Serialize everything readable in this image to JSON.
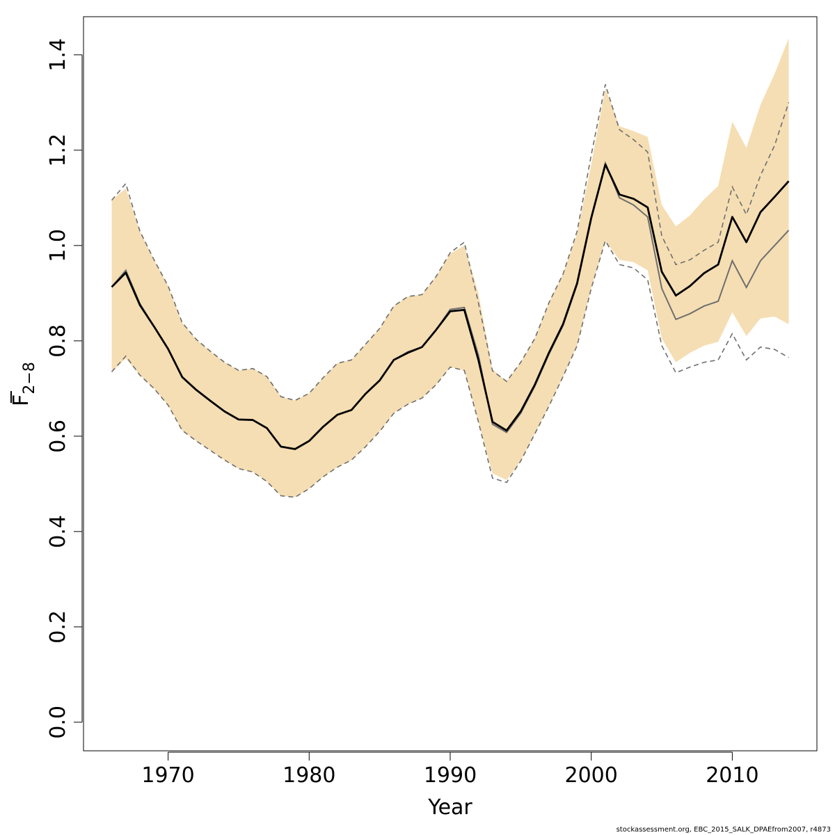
{
  "chart_data": {
    "type": "line",
    "xlabel": "Year",
    "ylabel": "F",
    "ylabel_subscript": "2−8",
    "xlim": [
      1964,
      2016
    ],
    "ylim": [
      -0.06,
      1.48
    ],
    "x_ticks": [
      1970,
      1980,
      1990,
      2000,
      2010
    ],
    "y_ticks": [
      0.0,
      0.2,
      0.4,
      0.6,
      0.8,
      1.0,
      1.2,
      1.4
    ],
    "x_tick_labels": [
      "1970",
      "1980",
      "1990",
      "2000",
      "2010"
    ],
    "y_tick_labels": [
      "0.0",
      "0.2",
      "0.4",
      "0.6",
      "0.8",
      "1.0",
      "1.2",
      "1.4"
    ],
    "grid": false,
    "colors": {
      "band": "#f5deb3",
      "main": "#000000",
      "secondary": "#6e6e6e",
      "dashed": "#6e6e6e"
    },
    "x": [
      1966,
      1967,
      1968,
      1969,
      1970,
      1971,
      1972,
      1973,
      1974,
      1975,
      1976,
      1977,
      1978,
      1979,
      1980,
      1981,
      1982,
      1983,
      1984,
      1985,
      1986,
      1987,
      1988,
      1989,
      1990,
      1991,
      1992,
      1993,
      1994,
      1995,
      1996,
      1997,
      1998,
      1999,
      2000,
      2001,
      2002,
      2003,
      2004,
      2005,
      2006,
      2007,
      2008,
      2009,
      2010,
      2011,
      2012,
      2013,
      2014
    ],
    "series": [
      {
        "role": "band_upper",
        "values": [
          1.095,
          1.12,
          1.03,
          0.97,
          0.915,
          0.838,
          0.803,
          0.778,
          0.755,
          0.738,
          0.742,
          0.725,
          0.683,
          0.675,
          0.69,
          0.723,
          0.753,
          0.76,
          0.793,
          0.826,
          0.873,
          0.893,
          0.897,
          0.935,
          0.983,
          1.0,
          0.9,
          0.74,
          0.715,
          0.755,
          0.805,
          0.88,
          0.94,
          1.025,
          1.17,
          1.33,
          1.25,
          1.24,
          1.228,
          1.085,
          1.04,
          1.063,
          1.097,
          1.125,
          1.26,
          1.205,
          1.295,
          1.36,
          1.435
        ]
      },
      {
        "role": "band_lower",
        "values": [
          0.735,
          0.763,
          0.728,
          0.7,
          0.665,
          0.612,
          0.59,
          0.57,
          0.55,
          0.532,
          0.525,
          0.505,
          0.475,
          0.472,
          0.49,
          0.515,
          0.535,
          0.55,
          0.578,
          0.61,
          0.648,
          0.667,
          0.68,
          0.708,
          0.745,
          0.738,
          0.63,
          0.522,
          0.508,
          0.548,
          0.605,
          0.663,
          0.725,
          0.79,
          0.91,
          1.01,
          0.97,
          0.965,
          0.948,
          0.805,
          0.755,
          0.775,
          0.79,
          0.798,
          0.86,
          0.81,
          0.847,
          0.851,
          0.835
        ]
      },
      {
        "role": "dashed_upper",
        "values": [
          1.095,
          1.13,
          1.03,
          0.97,
          0.915,
          0.838,
          0.803,
          0.778,
          0.755,
          0.738,
          0.742,
          0.725,
          0.683,
          0.675,
          0.69,
          0.723,
          0.753,
          0.76,
          0.793,
          0.826,
          0.873,
          0.893,
          0.897,
          0.935,
          0.985,
          1.007,
          0.88,
          0.737,
          0.715,
          0.755,
          0.805,
          0.88,
          0.94,
          1.03,
          1.19,
          1.338,
          1.243,
          1.222,
          1.196,
          1.02,
          0.96,
          0.97,
          0.99,
          1.007,
          1.123,
          1.065,
          1.147,
          1.21,
          1.3
        ]
      },
      {
        "role": "dashed_lower",
        "values": [
          0.735,
          0.768,
          0.728,
          0.7,
          0.665,
          0.612,
          0.59,
          0.57,
          0.55,
          0.532,
          0.525,
          0.505,
          0.475,
          0.472,
          0.49,
          0.515,
          0.535,
          0.55,
          0.578,
          0.61,
          0.648,
          0.667,
          0.68,
          0.708,
          0.745,
          0.738,
          0.63,
          0.512,
          0.503,
          0.548,
          0.605,
          0.663,
          0.725,
          0.79,
          0.91,
          1.01,
          0.96,
          0.953,
          0.928,
          0.79,
          0.733,
          0.745,
          0.755,
          0.76,
          0.815,
          0.76,
          0.787,
          0.782,
          0.765
        ]
      },
      {
        "role": "secondary",
        "values": [
          0.913,
          0.948,
          0.878,
          0.83,
          0.783,
          0.724,
          0.697,
          0.674,
          0.652,
          0.635,
          0.634,
          0.617,
          0.578,
          0.573,
          0.59,
          0.62,
          0.645,
          0.655,
          0.689,
          0.717,
          0.76,
          0.777,
          0.787,
          0.823,
          0.866,
          0.87,
          0.77,
          0.625,
          0.608,
          0.648,
          0.705,
          0.772,
          0.832,
          0.918,
          1.055,
          1.173,
          1.1,
          1.085,
          1.06,
          0.91,
          0.845,
          0.857,
          0.873,
          0.883,
          0.968,
          0.912,
          0.968,
          1.0,
          1.032
        ]
      },
      {
        "role": "main",
        "values": [
          0.913,
          0.943,
          0.875,
          0.83,
          0.783,
          0.724,
          0.697,
          0.674,
          0.652,
          0.635,
          0.634,
          0.617,
          0.578,
          0.573,
          0.59,
          0.62,
          0.645,
          0.655,
          0.689,
          0.717,
          0.76,
          0.775,
          0.787,
          0.823,
          0.862,
          0.865,
          0.76,
          0.63,
          0.612,
          0.652,
          0.708,
          0.775,
          0.835,
          0.921,
          1.058,
          1.17,
          1.107,
          1.098,
          1.08,
          0.945,
          0.895,
          0.915,
          0.942,
          0.96,
          1.06,
          1.007,
          1.07,
          1.102,
          1.135
        ]
      }
    ]
  },
  "footer": "stockassessment.org, EBC_2015_SALK_DPAEfrom2007, r4873"
}
